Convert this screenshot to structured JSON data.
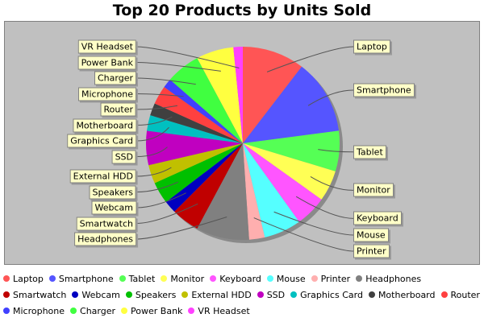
{
  "chart_data": {
    "type": "pie",
    "title": "Top 20 Products by Units Sold",
    "categories": [
      "Laptop",
      "Smartphone",
      "Tablet",
      "Monitor",
      "Keyboard",
      "Mouse",
      "Printer",
      "Headphones",
      "Smartwatch",
      "Webcam",
      "Speakers",
      "External HDD",
      "SSD",
      "Graphics Card",
      "Motherboard",
      "Router",
      "Microphone",
      "Charger",
      "Power Bank",
      "VR Headset"
    ],
    "values": [
      10.0,
      12.0,
      6.5,
      5.0,
      5.0,
      6.0,
      2.5,
      8.5,
      4.5,
      2.0,
      3.5,
      3.0,
      5.5,
      2.5,
      2.0,
      3.0,
      1.5,
      5.5,
      6.0,
      1.5
    ],
    "colors": [
      "#ff5555",
      "#5555ff",
      "#55ff55",
      "#ffff55",
      "#ff55ff",
      "#55ffff",
      "#ffafaf",
      "#808080",
      "#c00000",
      "#0000c0",
      "#00c000",
      "#c0c000",
      "#c000c0",
      "#00c0c0",
      "#404040",
      "#ff4040",
      "#4040ff",
      "#40ff40",
      "#ffff40",
      "#ff40ff"
    ],
    "legend_position": "bottom",
    "background": "#c0c0c0"
  }
}
